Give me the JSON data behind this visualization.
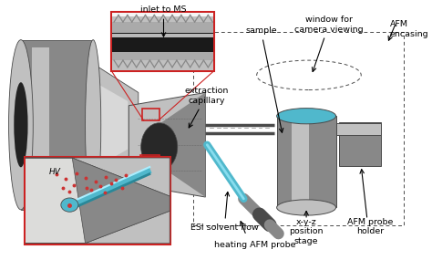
{
  "labels": {
    "inlet_to_ms": "inlet to MS",
    "sample": "sample",
    "window_for_camera": "window for\ncamera viewing",
    "afm_encasing": "AFM\nencasing",
    "extraction_capillary": "extraction\ncapillary",
    "esi_solvent_flow": "ESI solvent flow",
    "xyz_position_stage": "x-y-z\nposition\nstage",
    "afm_probe_holder": "AFM probe\nholder",
    "heating_afm_probe": "heating AFM probe",
    "hv": "HV"
  },
  "colors": {
    "gray_dark": "#4a4a4a",
    "gray_mid": "#888888",
    "gray_light": "#c0c0c0",
    "gray_lighter": "#e0e0e0",
    "blue": "#50b8cc",
    "blue_dark": "#2a8899",
    "red_box": "#cc2222",
    "red_dots": "#cc3333",
    "black": "#111111",
    "white": "#ffffff",
    "bg": "#ffffff"
  }
}
